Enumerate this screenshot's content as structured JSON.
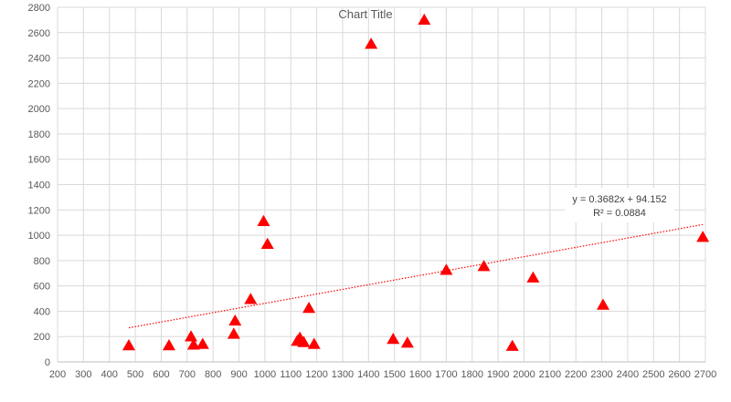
{
  "chart_data": {
    "type": "scatter",
    "title": "Chart Title",
    "xlim": [
      200,
      2700
    ],
    "ylim": [
      0,
      2800
    ],
    "x_ticks": [
      200,
      300,
      400,
      500,
      600,
      700,
      800,
      900,
      1000,
      1100,
      1200,
      1300,
      1400,
      1500,
      1600,
      1700,
      1800,
      1900,
      2000,
      2100,
      2200,
      2300,
      2400,
      2500,
      2600,
      2700
    ],
    "y_ticks": [
      0,
      200,
      400,
      600,
      800,
      1000,
      1200,
      1400,
      1600,
      1800,
      2000,
      2200,
      2400,
      2600,
      2800
    ],
    "grid": true,
    "marker": "triangle",
    "marker_color": "#ff0000",
    "points": [
      {
        "x": 475,
        "y": 130
      },
      {
        "x": 630,
        "y": 130
      },
      {
        "x": 715,
        "y": 200
      },
      {
        "x": 725,
        "y": 135
      },
      {
        "x": 760,
        "y": 140
      },
      {
        "x": 880,
        "y": 220
      },
      {
        "x": 885,
        "y": 325
      },
      {
        "x": 945,
        "y": 495
      },
      {
        "x": 995,
        "y": 1110
      },
      {
        "x": 1010,
        "y": 930
      },
      {
        "x": 1125,
        "y": 165
      },
      {
        "x": 1135,
        "y": 190
      },
      {
        "x": 1150,
        "y": 155
      },
      {
        "x": 1170,
        "y": 425
      },
      {
        "x": 1190,
        "y": 140
      },
      {
        "x": 1410,
        "y": 2510
      },
      {
        "x": 1495,
        "y": 180
      },
      {
        "x": 1550,
        "y": 150
      },
      {
        "x": 1615,
        "y": 2700
      },
      {
        "x": 1700,
        "y": 725
      },
      {
        "x": 1845,
        "y": 755
      },
      {
        "x": 1955,
        "y": 125
      },
      {
        "x": 2035,
        "y": 665
      },
      {
        "x": 2305,
        "y": 450
      },
      {
        "x": 2690,
        "y": 985
      }
    ],
    "trendline": {
      "type": "linear",
      "slope": 0.3682,
      "intercept": 94.152,
      "x_range": [
        475,
        2690
      ],
      "color": "#ff0000",
      "equation_label": "y = 0.3682x + 94.152",
      "r2_label": "R² = 0.0884"
    }
  }
}
